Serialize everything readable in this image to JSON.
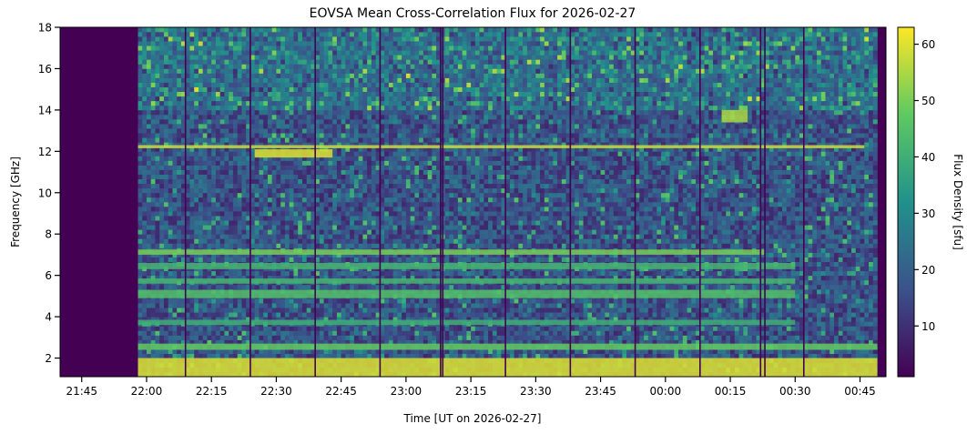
{
  "chart_data": {
    "type": "heatmap",
    "title": "EOVSA Mean Cross-Correlation Flux for 2026-02-27",
    "xlabel": "Time [UT on 2026-02-27]",
    "ylabel": "Frequency [GHz]",
    "colorbar_label": "Flux Density [sfu]",
    "colormap": "viridis",
    "colormap_stops": [
      "#440154",
      "#3b528b",
      "#21918c",
      "#5ec962",
      "#fde725"
    ],
    "clim": [
      1,
      63
    ],
    "colorbar_ticks": [
      10,
      20,
      30,
      40,
      50,
      60
    ],
    "xlim_minutes": [
      1300,
      1491
    ],
    "x_ticks": [
      {
        "label": "21:45",
        "minutes": 1305
      },
      {
        "label": "22:00",
        "minutes": 1320
      },
      {
        "label": "22:15",
        "minutes": 1335
      },
      {
        "label": "22:30",
        "minutes": 1350
      },
      {
        "label": "22:45",
        "minutes": 1365
      },
      {
        "label": "23:00",
        "minutes": 1380
      },
      {
        "label": "23:15",
        "minutes": 1395
      },
      {
        "label": "23:30",
        "minutes": 1410
      },
      {
        "label": "23:45",
        "minutes": 1425
      },
      {
        "label": "00:00",
        "minutes": 1440
      },
      {
        "label": "00:15",
        "minutes": 1455
      },
      {
        "label": "00:30",
        "minutes": 1470
      },
      {
        "label": "00:45",
        "minutes": 1485
      }
    ],
    "ylim": [
      1.1,
      18.0
    ],
    "y_ticks": [
      2,
      4,
      6,
      8,
      10,
      12,
      14,
      16,
      18
    ],
    "data_start_minutes": 1318,
    "data_end_minutes": 1489,
    "no_data_intervals_minutes": [
      [
        1300,
        1318
      ]
    ],
    "scan_gaps_minutes": [
      1304,
      1329,
      1344,
      1359,
      1374,
      1388,
      1388.5,
      1403,
      1418,
      1433,
      1448,
      1462,
      1463,
      1472
    ],
    "bright_bands": [
      {
        "freq_ghz": [
          1.1,
          2.0
        ],
        "start": 1318,
        "end": 1489,
        "level": 60
      },
      {
        "freq_ghz": [
          2.4,
          2.7
        ],
        "start": 1318,
        "end": 1489,
        "level": 48
      },
      {
        "freq_ghz": [
          3.6,
          3.85
        ],
        "start": 1318,
        "end": 1470,
        "level": 40
      },
      {
        "freq_ghz": [
          4.9,
          5.3
        ],
        "start": 1318,
        "end": 1470,
        "level": 45
      },
      {
        "freq_ghz": [
          5.6,
          5.85
        ],
        "start": 1318,
        "end": 1470,
        "level": 42
      },
      {
        "freq_ghz": [
          6.3,
          6.6
        ],
        "start": 1318,
        "end": 1470,
        "level": 42
      },
      {
        "freq_ghz": [
          7.0,
          7.25
        ],
        "start": 1318,
        "end": 1463,
        "level": 50
      },
      {
        "freq_ghz": [
          12.15,
          12.3
        ],
        "start": 1318,
        "end": 1486,
        "level": 58
      },
      {
        "freq_ghz": [
          11.7,
          12.1
        ],
        "start": 1345,
        "end": 1363,
        "level": 60
      },
      {
        "freq_ghz": [
          13.4,
          14.0
        ],
        "start": 1453,
        "end": 1459,
        "level": 55
      }
    ]
  }
}
